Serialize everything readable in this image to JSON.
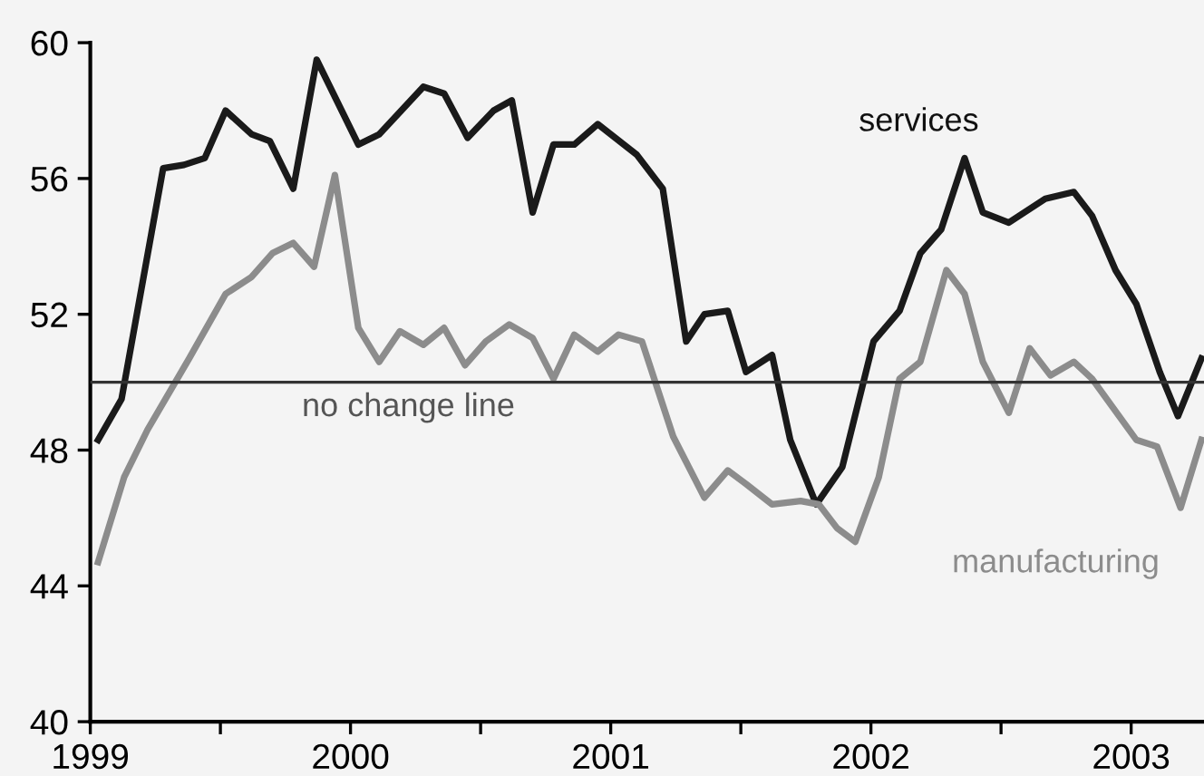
{
  "chart_data": {
    "type": "line",
    "xlim": [
      1999,
      2003.28
    ],
    "ylim": [
      40,
      60
    ],
    "xticks": [
      1999,
      {
        "value": 1999.5,
        "label": null
      },
      2000,
      {
        "value": 2000.5,
        "label": null
      },
      2001,
      {
        "value": 2001.5,
        "label": null
      },
      2002,
      {
        "value": 2002.5,
        "label": null
      },
      2003
    ],
    "yticks": [
      40,
      44,
      48,
      52,
      56,
      60
    ],
    "grid": false,
    "legend": false,
    "marker": "none",
    "line_style": "solid",
    "ref_lines": [
      {
        "axis": "y",
        "value": 50,
        "label": "no change line",
        "color": "#333333"
      }
    ],
    "series": [
      {
        "name": "services",
        "color": "#1a1a1a",
        "x": [
          1999.03,
          1999.12,
          1999.28,
          1999.36,
          1999.44,
          1999.52,
          1999.62,
          1999.69,
          1999.78,
          1999.87,
          2000.03,
          2000.11,
          2000.28,
          2000.36,
          2000.45,
          2000.55,
          2000.62,
          2000.7,
          2000.78,
          2000.86,
          2000.95,
          2001.1,
          2001.2,
          2001.29,
          2001.36,
          2001.45,
          2001.52,
          2001.62,
          2001.69,
          2001.79,
          2001.89,
          2002.01,
          2002.11,
          2002.19,
          2002.27,
          2002.36,
          2002.43,
          2002.53,
          2002.67,
          2002.78,
          2002.85,
          2002.94,
          2003.02,
          2003.11,
          2003.18,
          2003.27
        ],
        "values": [
          48.3,
          49.5,
          56.3,
          56.4,
          56.6,
          58.0,
          57.3,
          57.1,
          55.7,
          59.5,
          57.0,
          57.3,
          58.7,
          58.5,
          57.2,
          58.0,
          58.3,
          55.0,
          57.0,
          57.0,
          57.6,
          56.7,
          55.7,
          51.2,
          52.0,
          52.1,
          50.3,
          50.8,
          48.3,
          46.4,
          47.5,
          51.2,
          52.1,
          53.8,
          54.5,
          56.6,
          55.0,
          54.7,
          55.4,
          55.6,
          54.9,
          53.3,
          52.3,
          50.3,
          49.0,
          50.7
        ]
      },
      {
        "name": "manufacturing",
        "color": "#8c8c8c",
        "x": [
          1999.03,
          1999.13,
          1999.22,
          1999.38,
          1999.52,
          1999.62,
          1999.7,
          1999.78,
          1999.86,
          1999.94,
          2000.03,
          2000.11,
          2000.19,
          2000.28,
          2000.36,
          2000.44,
          2000.52,
          2000.61,
          2000.7,
          2000.78,
          2000.86,
          2000.95,
          2001.03,
          2001.12,
          2001.24,
          2001.36,
          2001.45,
          2001.52,
          2001.62,
          2001.73,
          2001.8,
          2001.87,
          2001.94,
          2002.03,
          2002.11,
          2002.19,
          2002.29,
          2002.36,
          2002.43,
          2002.53,
          2002.61,
          2002.69,
          2002.78,
          2002.85,
          2003.02,
          2003.1,
          2003.19,
          2003.27
        ],
        "values": [
          44.7,
          47.2,
          48.6,
          50.7,
          52.6,
          53.1,
          53.8,
          54.1,
          53.4,
          56.1,
          51.6,
          50.6,
          51.5,
          51.1,
          51.6,
          50.5,
          51.2,
          51.7,
          51.3,
          50.1,
          51.4,
          50.9,
          51.4,
          51.2,
          48.4,
          46.6,
          47.4,
          47.0,
          46.4,
          46.5,
          46.4,
          45.7,
          45.3,
          47.2,
          50.1,
          50.6,
          53.3,
          52.6,
          50.6,
          49.1,
          51.0,
          50.2,
          50.6,
          50.1,
          48.3,
          48.1,
          46.3,
          48.3
        ]
      }
    ]
  }
}
